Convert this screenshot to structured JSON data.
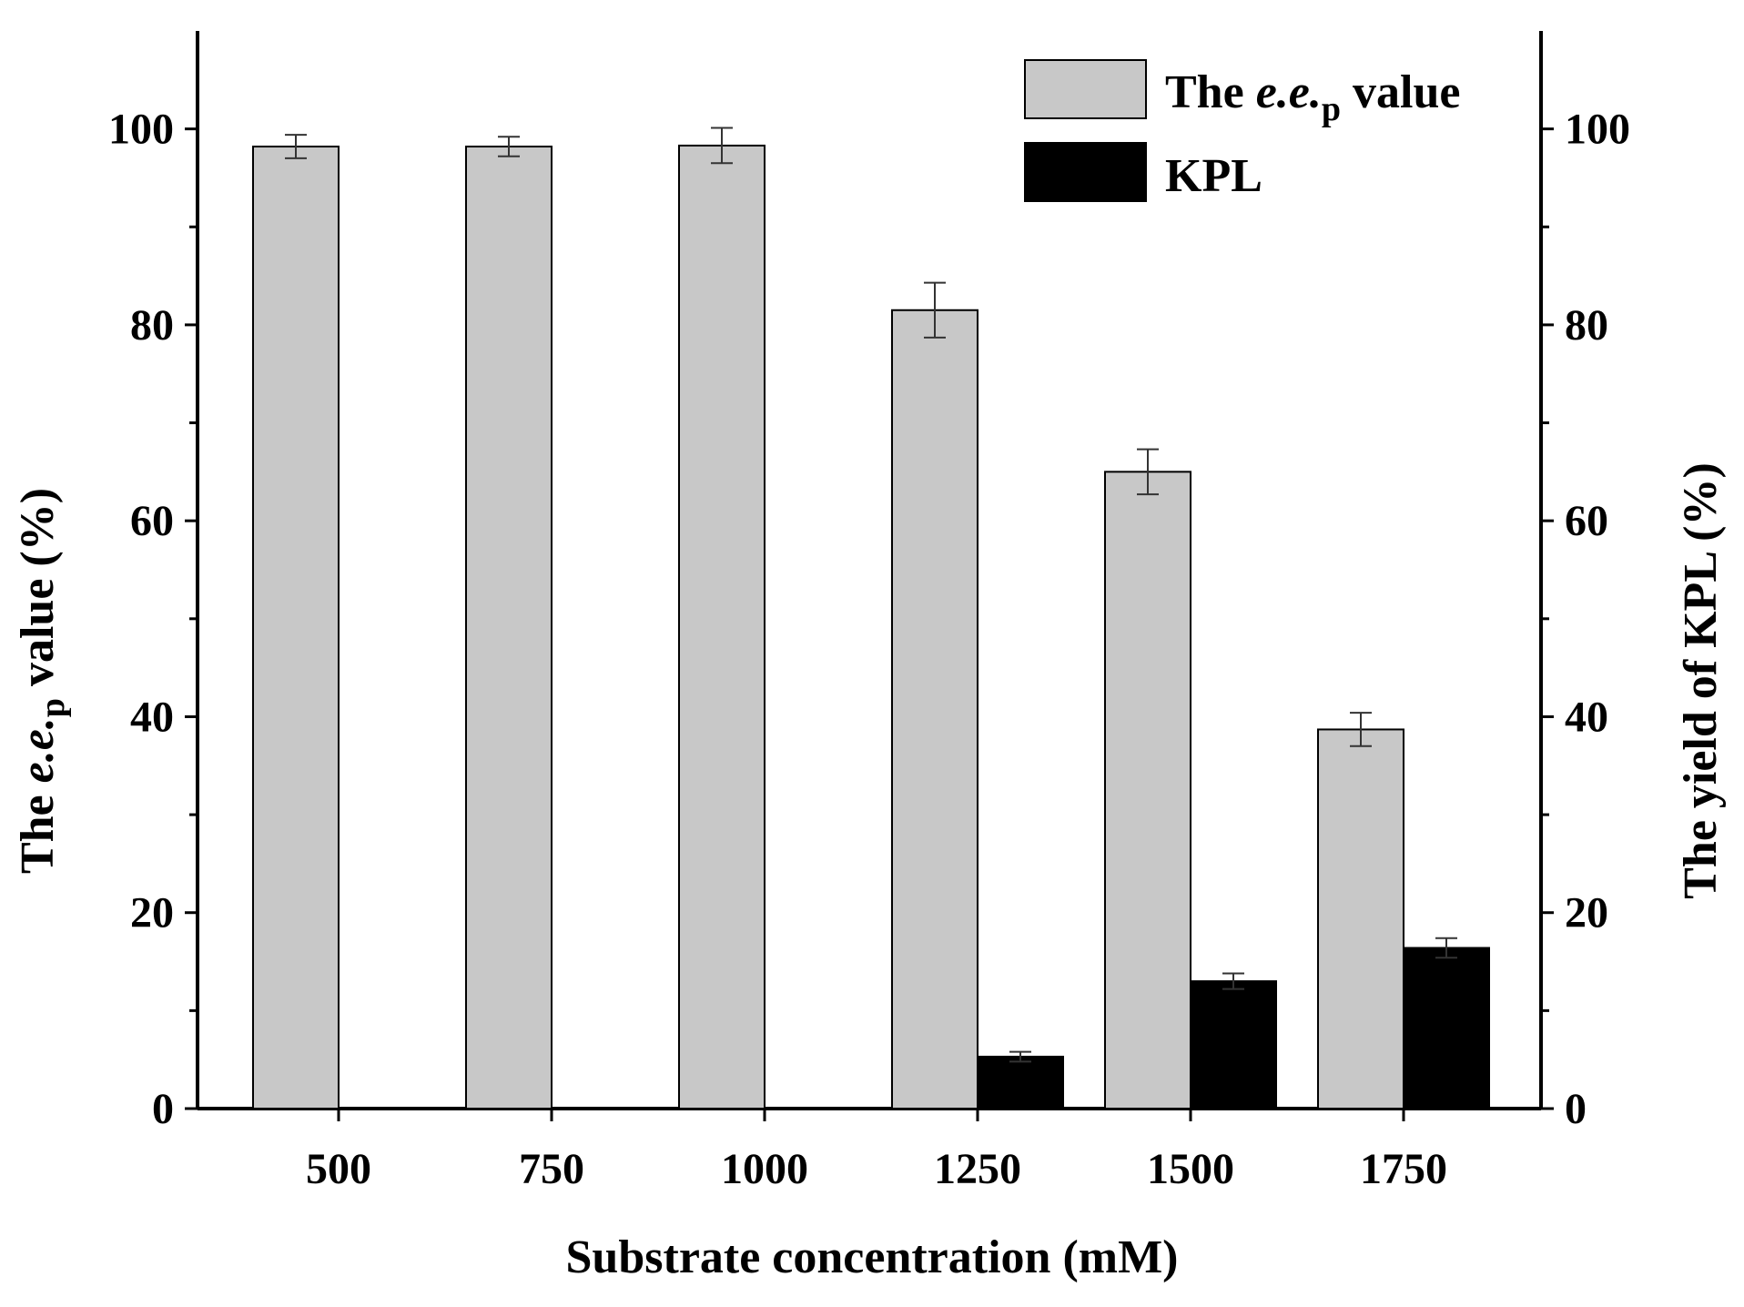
{
  "chart_data": {
    "type": "bar",
    "categories": [
      "500",
      "750",
      "1000",
      "1250",
      "1500",
      "1750"
    ],
    "series": [
      {
        "name": "The e.e.p value",
        "axis": "left",
        "color": "#c8c8c8",
        "values": [
          98.2,
          98.2,
          98.3,
          81.5,
          65.0,
          38.7
        ],
        "errors": [
          1.2,
          1.0,
          1.8,
          2.8,
          2.3,
          1.7
        ]
      },
      {
        "name": "KPL",
        "axis": "right",
        "color": "#000000",
        "values": [
          0,
          0,
          0,
          5.3,
          13.0,
          16.4
        ],
        "errors": [
          0,
          0,
          0,
          0.5,
          0.8,
          1.0
        ]
      }
    ],
    "xlabel": "Substrate concentration (mM)",
    "ylabel_left": {
      "prefix": "The ",
      "italic": "e.e.",
      "sub": "p",
      "suffix": " value (%)"
    },
    "ylabel_right": "The yield of KPL (%)",
    "ylim": [
      0,
      110
    ],
    "yticks": [
      "0",
      "20",
      "40",
      "60",
      "80",
      "100"
    ],
    "legend": {
      "position": "top-right",
      "entries": [
        {
          "prefix": "The ",
          "italic": "e.e.",
          "sub": "p",
          "suffix": " value"
        },
        {
          "prefix": "KPL",
          "italic": "",
          "sub": "",
          "suffix": ""
        }
      ]
    }
  }
}
